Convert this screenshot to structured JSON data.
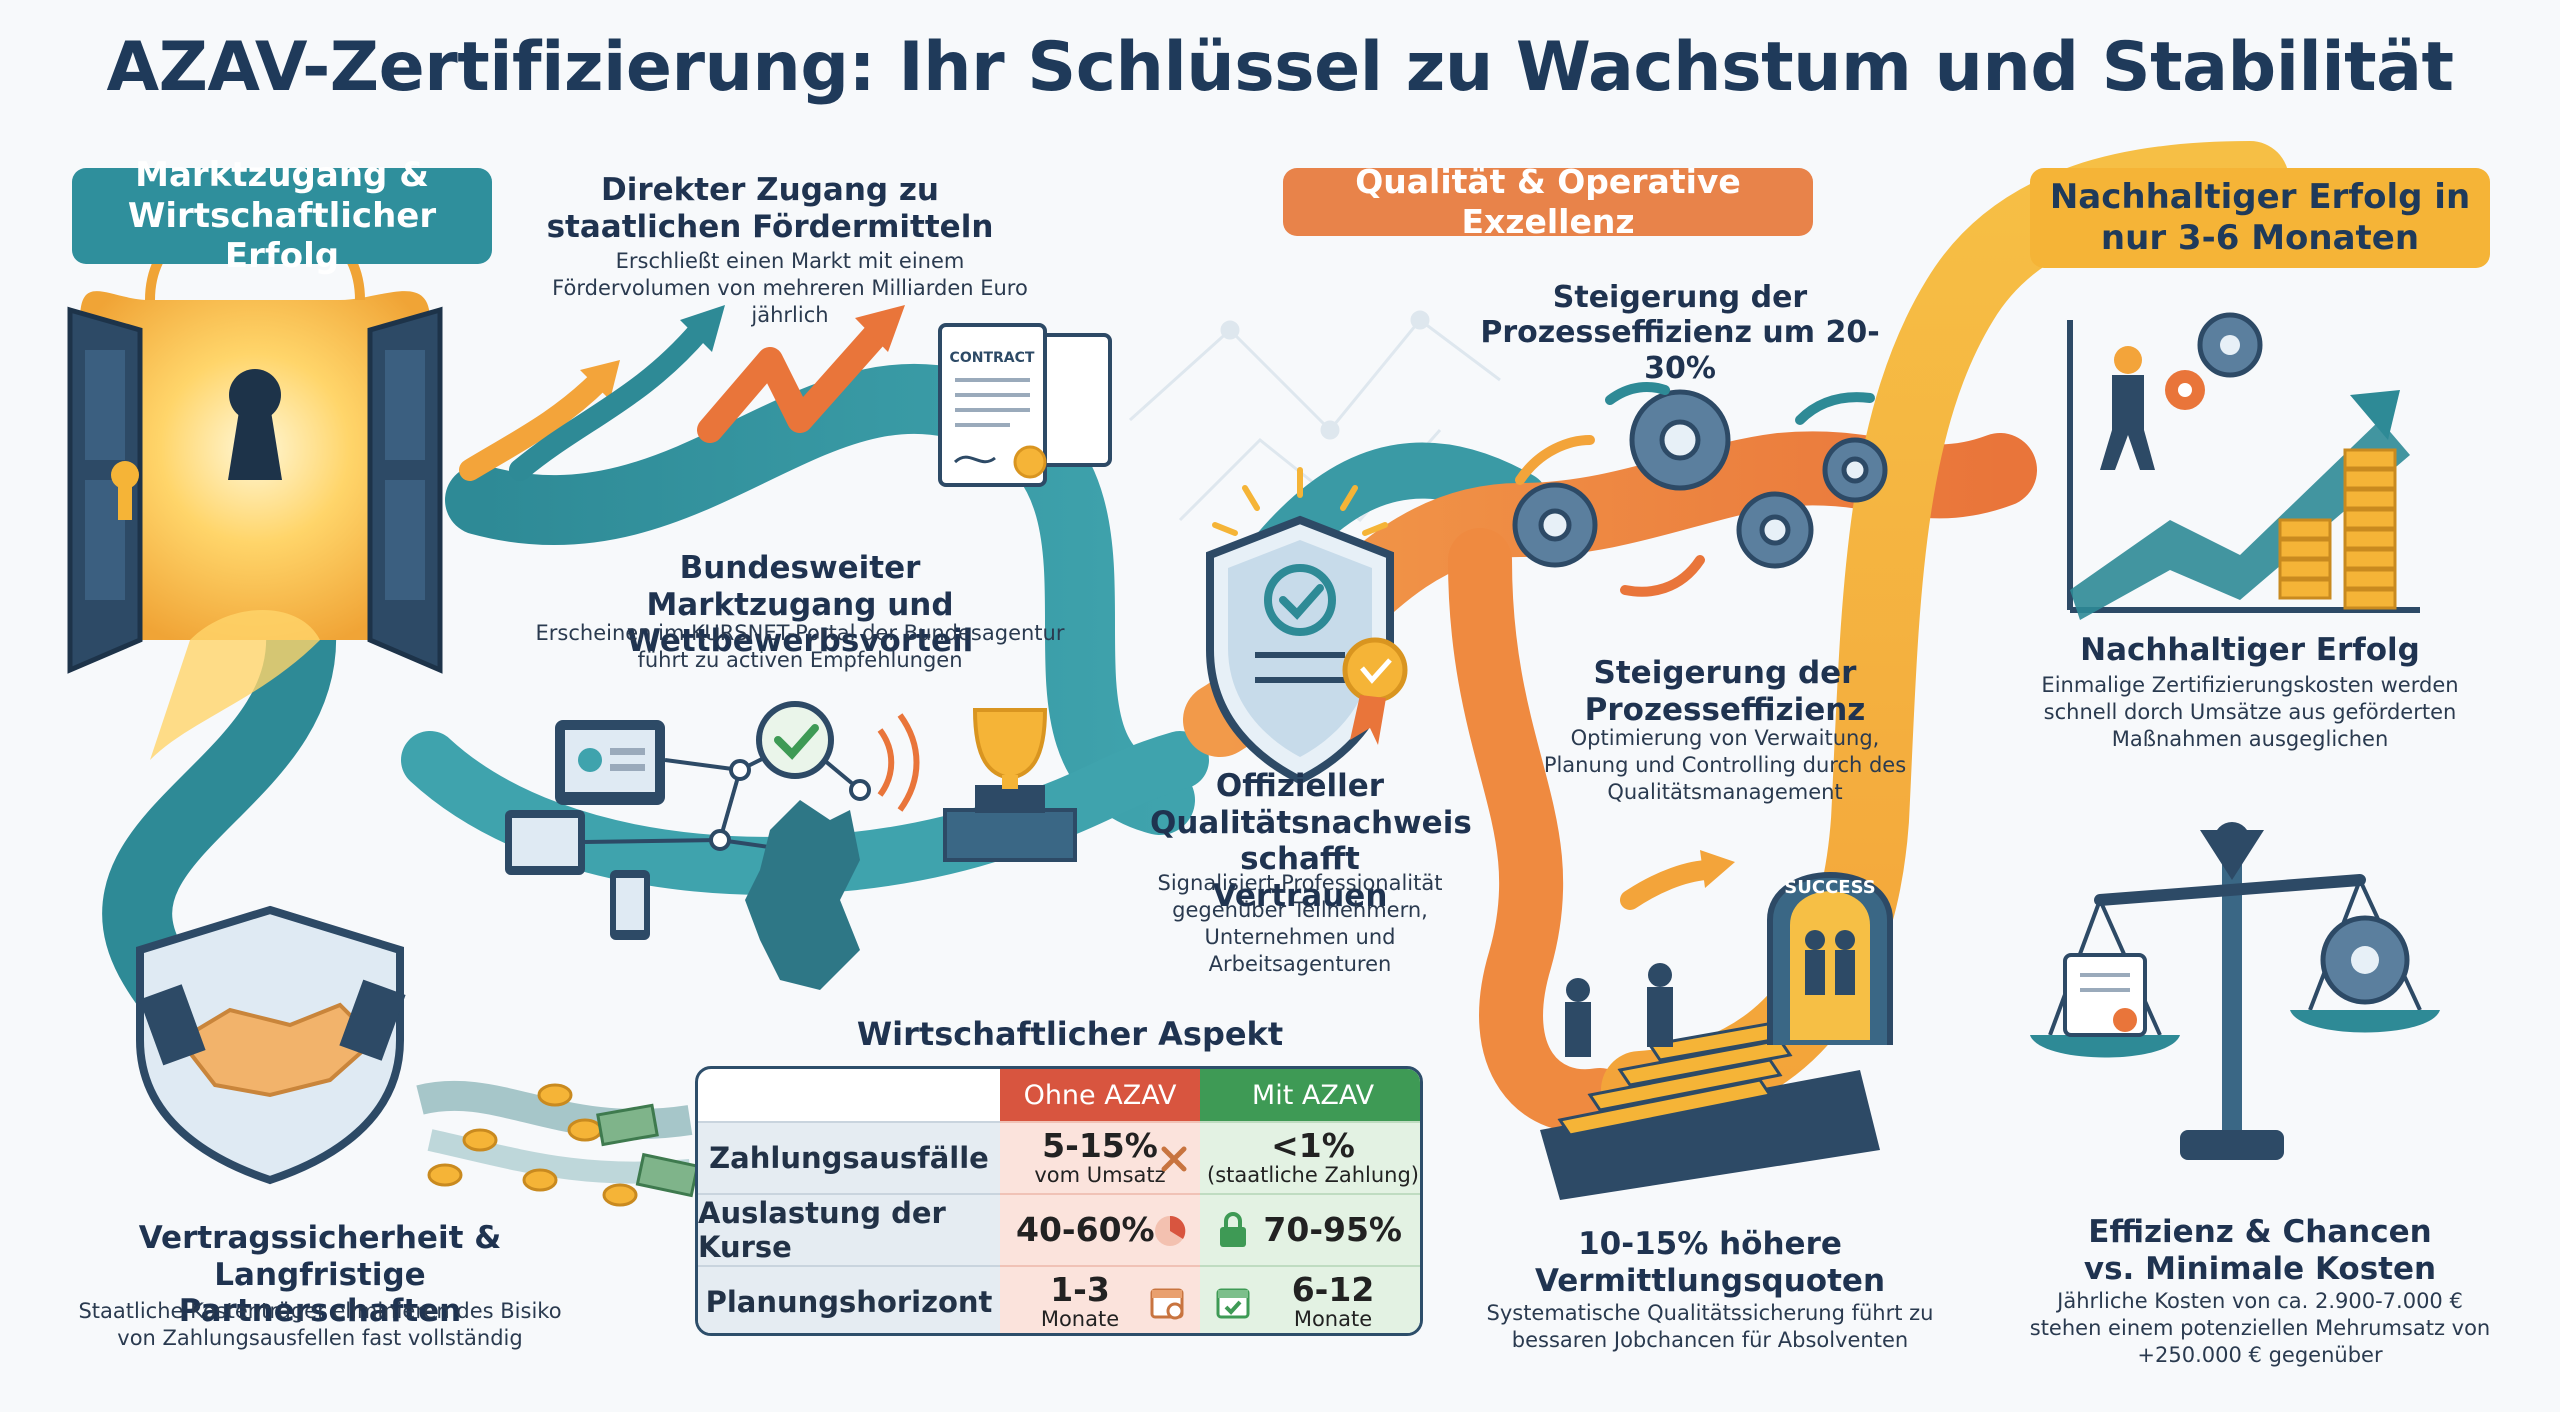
{
  "title": "AZAV-Zertifizierung: Ihr Schlüssel zu Wachstum und Stabilität",
  "pills": {
    "market": "Marktzugang & Wirtschaftlicher Erfolg",
    "quality": "Qualität & Operative Exzellenz",
    "success": "Nachhaltiger Erfolg in nur 3-6 Monaten"
  },
  "sections": {
    "funding": {
      "heading": "Direkter Zugang zu staatlichen Fördermitteln",
      "text": "Erschließt einen Markt mit einem Fördervolumen von mehreren Milliarden Euro jährlich"
    },
    "nationwide": {
      "heading": "Bundesweiter Marktzugang und Wettbewerbsvorteil",
      "text": "Erscheinen im KURSNET-Portal der Bundesagentur führt zu activen Empfehlungen"
    },
    "official": {
      "heading": "Offizieller Qualitätsnachweis schafft Vertrauen",
      "text": "Signalisiert Professionalität gegenüber Teilnehmern, Unternehmen und Arbeitsagenturen"
    },
    "efficiency_top": {
      "heading": "Steigerung der Prozesseffizienz um 20-30%"
    },
    "efficiency": {
      "heading": "Steigerung der Prozesseffizienz",
      "text": "Optimierung von Verwaitung, Planung und Controlling durch des Qualitätsmanagement"
    },
    "sustain": {
      "heading": "Nachhaltiger Erfolg",
      "text": "Einmalige Zertifizierungskosten werden schnell dorch Umsätze aus geförderten Maßnahmen ausgeglichen"
    },
    "contract": {
      "heading": "Vertragssicherheit & Langfristige Partnerschaften",
      "text": "Staatliche Kostenträger eliminieren des Bisiko von Zahlungsausfellen fast vollständig"
    },
    "placement": {
      "heading": "10-15% höhere Vermittlungsquoten",
      "text": "Systematische Qualitätssicherung führt zu bessaren Jobchancen für Absolventen"
    },
    "costs": {
      "heading": "Effizienz & Chancen vs. Minimale Kosten",
      "text": "Jährliche Kosten von ca. 2.900-7.000 € stehen einem potenziellen Mehrumsatz von +250.000 € gegenüber"
    }
  },
  "illustrations": {
    "contract_label": "CONTRACT",
    "success_arch": "SUCCESS"
  },
  "table": {
    "title": "Wirtschaftlicher Aspekt",
    "col_without": "Ohne AZAV",
    "col_with": "Mit AZAV",
    "rows": [
      {
        "label": "Zahlungsausfälle",
        "without_main": "5-15%",
        "without_sub": "vom Umsatz",
        "with_main": "<1%",
        "with_sub": "(staatliche Zahlung)",
        "without_icon": "cross-icon",
        "with_icon": ""
      },
      {
        "label": "Auslastung der Kurse",
        "without_main": "40-60%",
        "without_sub": "",
        "with_main": "70-95%",
        "with_sub": "",
        "without_icon": "pie-icon",
        "with_icon": "lock-icon"
      },
      {
        "label": "Planungshorizont",
        "without_main": "1-3",
        "without_sub": "Monate",
        "with_main": "6-12",
        "with_sub": "Monate",
        "without_icon": "calendar-icon",
        "with_icon": "calendar-check-icon"
      }
    ]
  },
  "colors": {
    "teal": "#2f8f9c",
    "orange": "#e8834a",
    "yellow": "#f5b437",
    "navy": "#1f3a5a",
    "red_header": "#d8553f",
    "green_header": "#3e9a55"
  }
}
